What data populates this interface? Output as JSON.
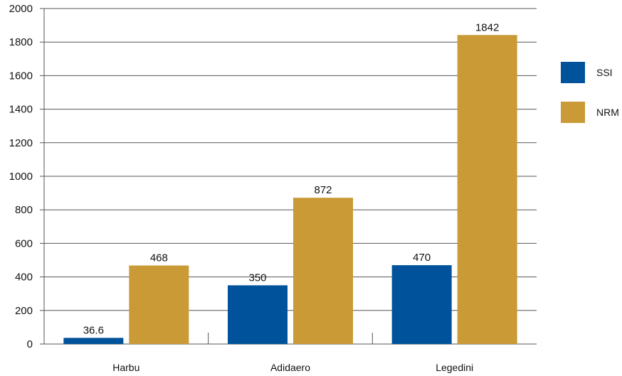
{
  "chart_data": {
    "type": "bar",
    "categories": [
      "Harbu",
      "Adidaero",
      "Legedini"
    ],
    "series": [
      {
        "name": "SSI",
        "values": [
          36.6,
          350,
          470
        ],
        "labels": [
          "36.6",
          "350",
          "470"
        ],
        "color": "#00539B"
      },
      {
        "name": "NRM",
        "values": [
          468,
          872,
          1842
        ],
        "labels": [
          "468",
          "872",
          "1842"
        ],
        "color": "#C99A36"
      }
    ],
    "y_ticks": [
      "0",
      "200",
      "400",
      "600",
      "800",
      "1000",
      "1200",
      "1400",
      "1600",
      "1800",
      "2000"
    ],
    "ylim": [
      0,
      2000
    ],
    "title": "",
    "xlabel": "",
    "ylabel": "",
    "grid": true,
    "legend_position": "right",
    "colors": {
      "gridline": "#555555",
      "axis": "#555555"
    }
  }
}
